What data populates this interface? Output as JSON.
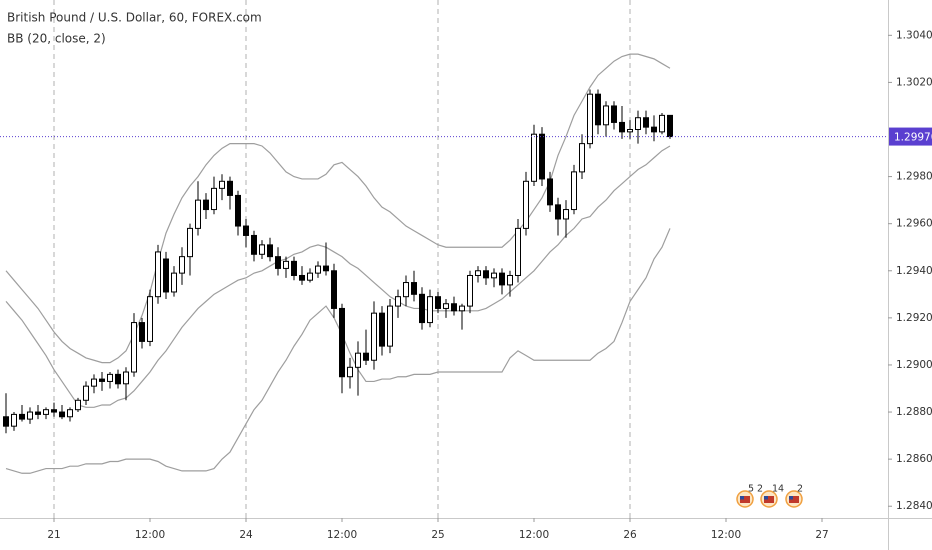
{
  "chart_data": {
    "type": "candlestick",
    "title": "British Pound / U.S. Dollar, 60, FOREX.com",
    "subtitle": "BB (20, close, 2)",
    "open": [
      1.2878,
      1.2874,
      1.2879,
      1.2877,
      1.288,
      1.2879,
      1.2881,
      1.288,
      1.2878,
      1.2881,
      1.2885,
      1.2891,
      1.2894,
      1.2893,
      1.2896,
      1.2892,
      1.2897,
      1.2918,
      1.291,
      1.2929,
      1.2945,
      1.2931,
      1.2939,
      1.2946,
      1.2958,
      1.297,
      1.2966,
      1.2975,
      1.2978,
      1.2972,
      1.2959,
      1.2955,
      1.2947,
      1.2951,
      1.2946,
      1.2941,
      1.2944,
      1.2938,
      1.2936,
      1.2939,
      1.2942,
      1.294,
      1.2924,
      1.2895,
      1.2899,
      1.2905,
      1.2902,
      1.2922,
      1.2908,
      1.2925,
      1.2929,
      1.2935,
      1.293,
      1.2918,
      1.2929,
      1.2924,
      1.2926,
      1.2923,
      1.2925,
      1.2938,
      1.294,
      1.2937,
      1.2939,
      1.2934,
      1.2938,
      1.2958,
      1.2978,
      1.2998,
      1.2979,
      1.2968,
      1.2962,
      1.2966,
      1.2982,
      1.2994,
      1.3015,
      1.3002,
      1.301,
      1.3003,
      1.2999,
      1.3,
      1.3005,
      1.3001,
      1.2999,
      1.3006
    ],
    "high": [
      1.2888,
      1.288,
      1.2883,
      1.2882,
      1.2883,
      1.2882,
      1.2884,
      1.2883,
      1.2882,
      1.2886,
      1.2893,
      1.2896,
      1.2897,
      1.2897,
      1.2898,
      1.2899,
      1.2922,
      1.292,
      1.2932,
      1.2951,
      1.2948,
      1.2942,
      1.295,
      1.296,
      1.2978,
      1.2973,
      1.298,
      1.2981,
      1.298,
      1.2974,
      1.2962,
      1.2957,
      1.2953,
      1.2954,
      1.295,
      1.2946,
      1.2946,
      1.2942,
      1.2941,
      1.2944,
      1.2952,
      1.2943,
      1.2926,
      1.2903,
      1.291,
      1.2915,
      1.2927,
      1.2925,
      1.2928,
      1.2932,
      1.2938,
      1.294,
      1.2933,
      1.2932,
      1.2931,
      1.2928,
      1.2929,
      1.2926,
      1.294,
      1.2942,
      1.2942,
      1.2941,
      1.2941,
      1.294,
      1.2962,
      1.2982,
      1.3002,
      1.3001,
      1.2982,
      1.2971,
      1.297,
      1.2985,
      1.2998,
      1.3017,
      1.3017,
      1.3012,
      1.3012,
      1.301,
      1.3004,
      1.3008,
      1.3008,
      1.3006,
      1.3007,
      1.3006
    ],
    "low": [
      1.2871,
      1.2872,
      1.2876,
      1.2875,
      1.2877,
      1.2877,
      1.2878,
      1.2877,
      1.2876,
      1.288,
      1.2883,
      1.2888,
      1.2889,
      1.289,
      1.289,
      1.2885,
      1.2895,
      1.2907,
      1.2908,
      1.2926,
      1.2928,
      1.2929,
      1.2934,
      1.2938,
      1.2955,
      1.2962,
      1.2964,
      1.297,
      1.2966,
      1.2955,
      1.295,
      1.2944,
      1.2945,
      1.2944,
      1.2938,
      1.2937,
      1.2936,
      1.2934,
      1.2935,
      1.2937,
      1.2938,
      1.292,
      1.2888,
      1.289,
      1.2887,
      1.29,
      1.2898,
      1.2904,
      1.2905,
      1.292,
      1.2925,
      1.2927,
      1.2915,
      1.2916,
      1.2922,
      1.292,
      1.2921,
      1.2915,
      1.2922,
      1.2935,
      1.2934,
      1.2933,
      1.293,
      1.2929,
      1.2935,
      1.2955,
      1.2976,
      1.2976,
      1.2965,
      1.2955,
      1.2954,
      1.2964,
      1.2979,
      1.2992,
      1.2998,
      1.2997,
      1.3,
      1.2996,
      1.2996,
      1.2994,
      1.2998,
      1.2995,
      1.2998,
      1.2996
    ],
    "close": [
      1.2874,
      1.2879,
      1.2877,
      1.288,
      1.2879,
      1.2881,
      1.288,
      1.2878,
      1.2881,
      1.2885,
      1.2891,
      1.2894,
      1.2893,
      1.2896,
      1.2892,
      1.2897,
      1.2918,
      1.291,
      1.2929,
      1.2948,
      1.2931,
      1.2939,
      1.2946,
      1.2958,
      1.297,
      1.2966,
      1.2975,
      1.2978,
      1.2972,
      1.2959,
      1.2955,
      1.2947,
      1.2951,
      1.2946,
      1.2941,
      1.2944,
      1.2938,
      1.2936,
      1.2939,
      1.2942,
      1.294,
      1.2924,
      1.2895,
      1.2899,
      1.2905,
      1.2902,
      1.2922,
      1.2908,
      1.2925,
      1.2929,
      1.2935,
      1.293,
      1.2918,
      1.2929,
      1.2924,
      1.2926,
      1.2923,
      1.2925,
      1.2938,
      1.294,
      1.2937,
      1.2939,
      1.2934,
      1.2938,
      1.2958,
      1.2978,
      1.2998,
      1.2979,
      1.2968,
      1.2962,
      1.2966,
      1.2982,
      1.2994,
      1.3015,
      1.3002,
      1.301,
      1.3003,
      1.2999,
      1.3,
      1.3005,
      1.3001,
      1.2999,
      1.3006,
      1.2997
    ],
    "up_color": "#ffffff",
    "down_color": "#000000",
    "outline_color": "#000000",
    "series": [
      {
        "color": "#9e9e9e",
        "values": [
          1.294,
          1.2936,
          1.2932,
          1.2928,
          1.2924,
          1.2919,
          1.2914,
          1.291,
          1.2907,
          1.2905,
          1.2903,
          1.2902,
          1.2901,
          1.2901,
          1.2903,
          1.2906,
          1.2913,
          1.2921,
          1.2931,
          1.2944,
          1.2956,
          1.2964,
          1.2971,
          1.2976,
          1.298,
          1.2985,
          1.2989,
          1.2992,
          1.2994,
          1.2994,
          1.2994,
          1.2994,
          1.2993,
          1.299,
          1.2986,
          1.2982,
          1.298,
          1.2979,
          1.2979,
          1.2979,
          1.2981,
          1.2985,
          1.2986,
          1.2983,
          1.298,
          1.2976,
          1.2971,
          1.2967,
          1.2965,
          1.2962,
          1.2959,
          1.2957,
          1.2955,
          1.2953,
          1.2951,
          1.295,
          1.295,
          1.295,
          1.295,
          1.295,
          1.295,
          1.295,
          1.295,
          1.2953,
          1.2957,
          1.2961,
          1.2966,
          1.2971,
          1.2978,
          1.2989,
          1.2997,
          1.3006,
          1.3012,
          1.3018,
          1.3023,
          1.3026,
          1.3029,
          1.3031,
          1.3032,
          1.3032,
          1.3031,
          1.303,
          1.3028,
          1.3026
        ]
      },
      {
        "color": "#9e9e9e",
        "values": [
          1.2927,
          1.2923,
          1.2919,
          1.2914,
          1.2909,
          1.2904,
          1.2898,
          1.2893,
          1.2888,
          1.2883,
          1.2882,
          1.2882,
          1.2883,
          1.2883,
          1.2885,
          1.2886,
          1.2889,
          1.2893,
          1.2897,
          1.2902,
          1.2906,
          1.2911,
          1.2916,
          1.292,
          1.2924,
          1.2927,
          1.293,
          1.2932,
          1.2934,
          1.2936,
          1.2937,
          1.2939,
          1.294,
          1.2942,
          1.2944,
          1.2945,
          1.2947,
          1.2948,
          1.295,
          1.2951,
          1.295,
          1.2948,
          1.2946,
          1.2943,
          1.2941,
          1.2938,
          1.2935,
          1.2932,
          1.2929,
          1.2927,
          1.2925,
          1.2924,
          1.2924,
          1.2923,
          1.2923,
          1.2923,
          1.2923,
          1.2923,
          1.2923,
          1.2923,
          1.2924,
          1.2926,
          1.2928,
          1.2931,
          1.2934,
          1.2937,
          1.294,
          1.2944,
          1.2948,
          1.2951,
          1.2955,
          1.2958,
          1.2962,
          1.2963,
          1.2967,
          1.297,
          1.2974,
          1.2977,
          1.298,
          1.2983,
          1.2985,
          1.2988,
          1.2991,
          1.2993
        ]
      },
      {
        "color": "#9e9e9e",
        "values": [
          1.2856,
          1.2855,
          1.2854,
          1.2854,
          1.2855,
          1.2856,
          1.2856,
          1.2856,
          1.2857,
          1.2857,
          1.2858,
          1.2858,
          1.2858,
          1.2859,
          1.2859,
          1.286,
          1.286,
          1.286,
          1.286,
          1.2859,
          1.2857,
          1.2856,
          1.2855,
          1.2855,
          1.2855,
          1.2855,
          1.2856,
          1.286,
          1.2863,
          1.2869,
          1.2875,
          1.2881,
          1.2885,
          1.2891,
          1.2897,
          1.2902,
          1.2908,
          1.2913,
          1.2919,
          1.2922,
          1.2925,
          1.292,
          1.2913,
          1.2905,
          1.2898,
          1.2893,
          1.2893,
          1.2894,
          1.2894,
          1.2895,
          1.2895,
          1.2896,
          1.2896,
          1.2896,
          1.2897,
          1.2897,
          1.2897,
          1.2897,
          1.2897,
          1.2897,
          1.2897,
          1.2897,
          1.2897,
          1.2903,
          1.2906,
          1.2904,
          1.2902,
          1.2902,
          1.2902,
          1.2902,
          1.2902,
          1.2902,
          1.2902,
          1.2902,
          1.2905,
          1.2907,
          1.291,
          1.2918,
          1.2927,
          1.2932,
          1.2937,
          1.2945,
          1.295,
          1.2958
        ]
      }
    ],
    "last_price": {
      "value": 1.2997,
      "label": "1.29970",
      "color": "#5a3fd0"
    },
    "ylim": [
      1.2835,
      1.3055
    ],
    "yticks": [
      {
        "value": 1.284,
        "label": "1.28400"
      },
      {
        "value": 1.286,
        "label": "1.28600"
      },
      {
        "value": 1.288,
        "label": "1.28800"
      },
      {
        "value": 1.29,
        "label": "1.29000"
      },
      {
        "value": 1.292,
        "label": "1.29200"
      },
      {
        "value": 1.294,
        "label": "1.29400"
      },
      {
        "value": 1.296,
        "label": "1.29600"
      },
      {
        "value": 1.298,
        "label": "1.29800"
      },
      {
        "value": 1.302,
        "label": "1.30200"
      },
      {
        "value": 1.304,
        "label": "1.30400"
      }
    ],
    "xlim": [
      -0.75,
      110.25
    ],
    "xticks": [
      {
        "value": 6,
        "label": "21"
      },
      {
        "value": 18,
        "label": "12:00"
      },
      {
        "value": 30,
        "label": "24"
      },
      {
        "value": 42,
        "label": "12:00"
      },
      {
        "value": 54,
        "label": "25"
      },
      {
        "value": 66,
        "label": "12:00"
      },
      {
        "value": 78,
        "label": "26"
      },
      {
        "value": 90,
        "label": "12:00"
      },
      {
        "value": 102,
        "label": "27"
      }
    ],
    "events": [
      [
        5,
        2
      ],
      [
        14
      ],
      [
        2
      ]
    ]
  }
}
